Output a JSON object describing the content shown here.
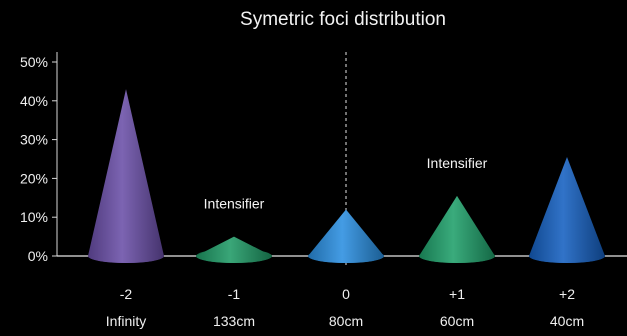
{
  "chart_data": {
    "type": "bar",
    "title": "Symetric foci distribution",
    "categories": [
      "-2",
      "-1",
      "0",
      "+1",
      "+2"
    ],
    "sublabels": [
      "Infinity",
      "133cm",
      "80cm",
      "60cm",
      "40cm"
    ],
    "values": [
      43,
      5,
      12,
      15.5,
      25.5
    ],
    "ylim": [
      0,
      50
    ],
    "yticks": [
      0,
      10,
      20,
      30,
      40,
      50
    ],
    "ytick_labels": [
      "0%",
      "10%",
      "20%",
      "30%",
      "40%",
      "50%"
    ],
    "center_line_at": "0",
    "annotations": [
      {
        "text": "Intensifier",
        "category": "-1"
      },
      {
        "text": "Intensifier",
        "category": "+1"
      }
    ],
    "colors": [
      "#6a4fa8",
      "#1f9a66",
      "#2a8fe0",
      "#1fa06a",
      "#1560c0"
    ]
  }
}
